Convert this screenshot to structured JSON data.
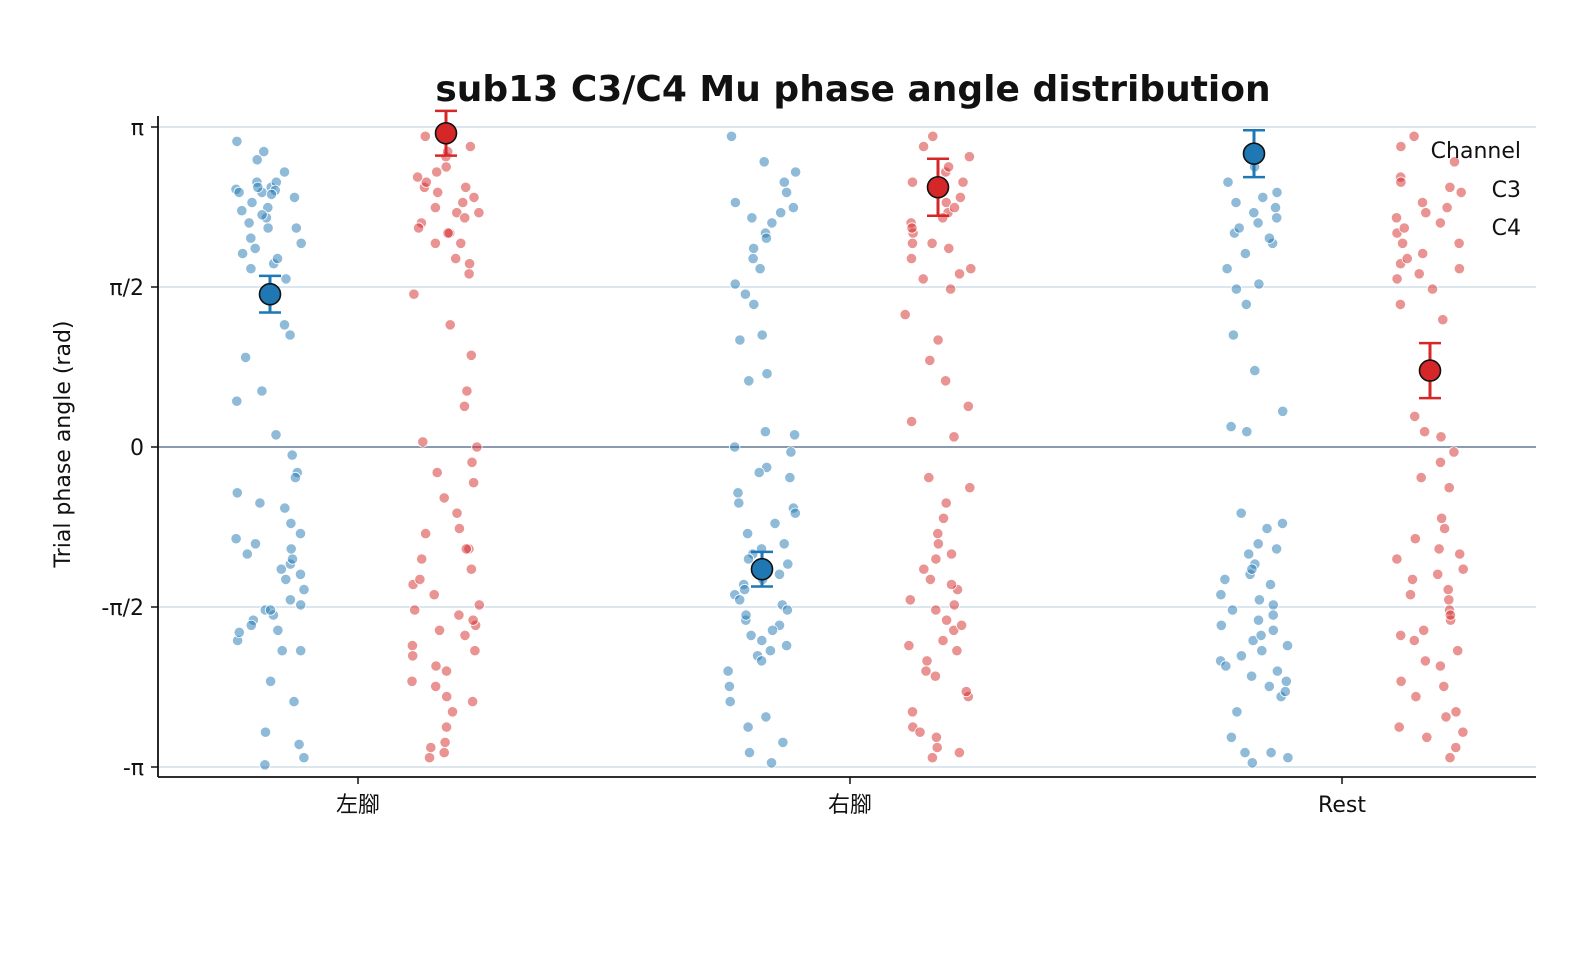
{
  "chart_data": {
    "type": "scatter",
    "subtype": "strip-plot-with-mean-and-error-bars",
    "title": "sub13 C3/C4 Mu phase angle distribution",
    "xlabel": "",
    "ylabel": "Trial phase angle (rad)",
    "categories": [
      "左腳",
      "右腳",
      "Rest"
    ],
    "ylim": [
      -3.2,
      3.2
    ],
    "yticks": [
      {
        "value": 3.14159,
        "label": "π"
      },
      {
        "value": 1.5708,
        "label": "π/2"
      },
      {
        "value": 0,
        "label": "0"
      },
      {
        "value": -1.5708,
        "label": "-π/2"
      },
      {
        "value": -3.14159,
        "label": "-π"
      }
    ],
    "grid": "horizontal",
    "zero_line": true,
    "legend": {
      "title": "Channel",
      "placement": "top-right"
    },
    "series": [
      {
        "name": "C3",
        "color": "#1f77b4",
        "means": [
          1.5,
          -1.2,
          2.88
        ],
        "errors": [
          0.18,
          0.17,
          0.23
        ],
        "points": [
          [
            2.53,
            2.25,
            2.82,
            2.5,
            2.45,
            2.9,
            2.55,
            2.35,
            2.15,
            1.95,
            1.75,
            1.2,
            0.88,
            0.55,
            0.12,
            -0.08,
            2.5,
            2.32,
            2.05,
            1.65,
            2.6,
            1.8,
            1.55,
            2.4,
            2.6,
            1.1,
            0.45,
            2.2,
            2.52,
            2.7,
            3.0,
            2.28,
            2.15,
            2.48,
            1.9,
            1.85,
            2.0,
            2.55,
            -0.25,
            -0.45,
            -0.6,
            -0.75,
            -0.85,
            -0.95,
            -1.05,
            -1.15,
            -1.25,
            -1.3,
            -1.4,
            -1.5,
            -1.6,
            -1.7,
            -1.8,
            -1.9,
            -2.0,
            -1.1,
            -0.55,
            -0.3,
            -0.9,
            -1.2,
            -1.55,
            -1.65,
            -2.0,
            -2.3,
            -2.5,
            -2.8,
            -2.92,
            -3.05,
            -3.12,
            -1.0,
            -1.6,
            -1.75,
            -1.82
          ],
          [
            3.05,
            2.6,
            2.4,
            2.25,
            2.1,
            1.95,
            1.75,
            1.6,
            1.4,
            1.05,
            0.72,
            0.15,
            -0.05,
            0.0,
            0.12,
            2.7,
            2.3,
            2.05,
            1.85,
            2.5,
            2.2,
            1.1,
            0.65,
            2.8,
            1.5,
            2.35,
            -0.2,
            -0.3,
            -0.45,
            -0.55,
            -0.6,
            -0.75,
            -0.85,
            -0.95,
            -1.05,
            -1.15,
            -1.2,
            -1.3,
            -1.35,
            -1.45,
            -1.55,
            -1.6,
            -1.7,
            -1.75,
            -1.85,
            -1.95,
            -2.05,
            -2.2,
            -2.35,
            -2.5,
            -2.65,
            -2.75,
            -2.9,
            -3.0,
            -3.1,
            -0.65,
            -1.0,
            -1.25,
            -1.5,
            -1.8,
            -2.1,
            -1.4,
            -1.65,
            -1.9,
            -2.0,
            -0.25,
            -1.1
          ],
          [
            2.9,
            2.75,
            2.6,
            2.45,
            2.35,
            2.3,
            2.2,
            2.1,
            2.0,
            1.9,
            1.75,
            1.6,
            1.4,
            1.1,
            0.75,
            0.35,
            0.15,
            0.2,
            2.5,
            2.25,
            2.05,
            1.55,
            2.15,
            2.4,
            -0.65,
            -0.75,
            -0.8,
            -0.95,
            -1.05,
            -1.15,
            -1.25,
            -1.35,
            -1.45,
            -1.55,
            -1.65,
            -1.75,
            -1.8,
            -1.9,
            -2.0,
            -2.1,
            -2.2,
            -2.3,
            -2.45,
            -2.6,
            -2.85,
            -3.0,
            -3.1,
            -3.05,
            -3.0,
            -1.2,
            -1.6,
            -1.7,
            -1.85,
            -1.95,
            -2.05,
            -2.15,
            -2.25,
            -2.4,
            -1.0,
            -1.3,
            -1.5,
            -2.35
          ]
        ]
      },
      {
        "name": "C4",
        "color": "#d62728",
        "means": [
          3.08,
          2.55,
          0.75
        ],
        "errors": [
          0.22,
          0.28,
          0.27
        ],
        "points": [
          [
            2.95,
            2.85,
            2.7,
            2.55,
            2.45,
            2.3,
            2.2,
            2.1,
            2.0,
            1.85,
            1.7,
            1.5,
            1.2,
            0.9,
            0.55,
            0.4,
            0.05,
            2.6,
            2.4,
            2.25,
            2.15,
            2.0,
            1.8,
            2.5,
            2.35,
            2.75,
            3.05,
            2.65,
            2.9,
            2.55,
            2.3,
            2.1,
            0.0,
            -0.15,
            -0.25,
            -0.35,
            -0.5,
            -0.65,
            -0.8,
            -1.0,
            -1.1,
            -1.2,
            -1.35,
            -1.45,
            -1.55,
            -1.65,
            -1.75,
            -1.85,
            -1.95,
            -2.05,
            -2.2,
            -2.3,
            -2.45,
            -2.6,
            -2.75,
            -2.9,
            -3.05,
            -0.85,
            -1.0,
            -1.3,
            -1.6,
            -1.7,
            -1.8,
            -2.0,
            -2.15,
            -2.35,
            -2.5,
            -2.95,
            -3.0
          ],
          [
            3.05,
            2.95,
            2.85,
            2.7,
            2.6,
            2.5,
            2.4,
            2.3,
            2.2,
            2.1,
            2.0,
            1.85,
            1.7,
            1.55,
            1.3,
            1.05,
            0.85,
            0.65,
            0.4,
            0.25,
            0.1,
            2.6,
            2.45,
            2.25,
            2.15,
            2.0,
            1.75,
            2.75,
            2.35,
            1.95,
            1.65,
            -0.3,
            -0.4,
            -0.55,
            -0.7,
            -0.85,
            -0.95,
            -1.05,
            -1.2,
            -1.3,
            -1.4,
            -1.5,
            -1.6,
            -1.7,
            -1.8,
            -1.9,
            -2.0,
            -2.1,
            -2.25,
            -2.45,
            -2.6,
            -2.75,
            -2.85,
            -2.95,
            -3.0,
            -3.05,
            -1.1,
            -1.35,
            -1.55,
            -1.75,
            -1.95,
            -2.2,
            -2.4,
            -2.8
          ],
          [
            3.05,
            2.95,
            2.8,
            2.65,
            2.55,
            2.4,
            2.3,
            2.2,
            2.1,
            2.0,
            1.9,
            1.8,
            1.7,
            1.55,
            1.4,
            1.25,
            0.3,
            0.15,
            0.1,
            -0.05,
            -0.15,
            -0.3,
            -0.4,
            2.5,
            2.35,
            2.15,
            1.85,
            1.65,
            2.6,
            2.25,
            2.0,
            1.75,
            -0.7,
            -0.8,
            -0.9,
            -1.0,
            -1.1,
            -1.2,
            -1.3,
            -1.4,
            -1.5,
            -1.6,
            -1.7,
            -1.8,
            -1.9,
            -2.0,
            -2.15,
            -2.3,
            -2.45,
            -2.6,
            -2.75,
            -2.85,
            -2.95,
            -3.05,
            -1.05,
            -1.25,
            -1.45,
            -1.65,
            -1.85,
            -2.1,
            -2.35,
            -2.65,
            -2.8
          ]
        ]
      }
    ]
  }
}
